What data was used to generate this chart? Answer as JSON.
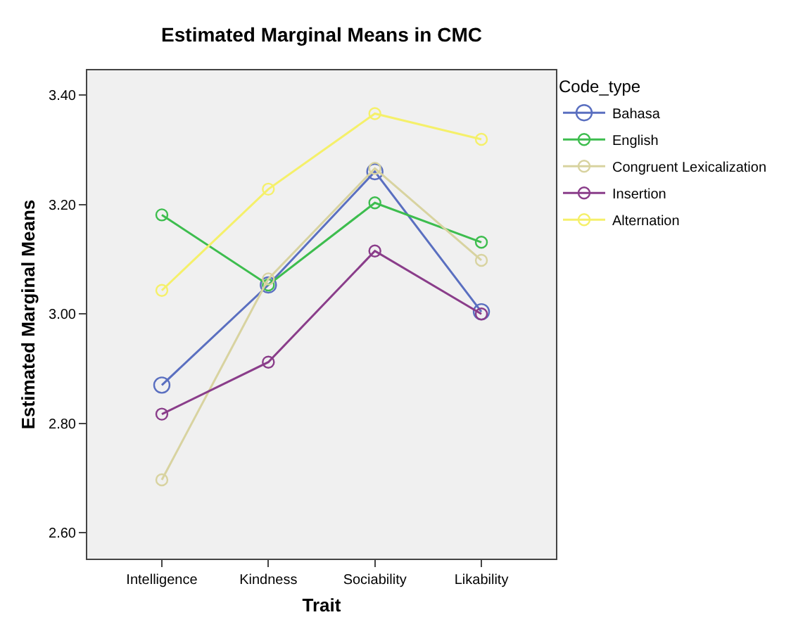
{
  "chart_data": {
    "type": "line",
    "title": "Estimated Marginal Means in CMC",
    "xlabel": "Trait",
    "ylabel": "Estimated Marginal Means",
    "legend_title": "Code_type",
    "categories": [
      "Intelligence",
      "Kindness",
      "Sociability",
      "Likability"
    ],
    "series": [
      {
        "name": "Bahasa",
        "color": "#5a6fc0",
        "values": [
          2.87,
          3.053,
          3.26,
          3.004
        ]
      },
      {
        "name": "English",
        "color": "#3dbd4e",
        "values": [
          3.181,
          3.053,
          3.203,
          3.131
        ]
      },
      {
        "name": "Congruent Lexicalization",
        "color": "#d8d3a0",
        "values": [
          2.697,
          3.064,
          3.266,
          3.098
        ]
      },
      {
        "name": "Insertion",
        "color": "#8a3d8a",
        "values": [
          2.817,
          2.912,
          3.115,
          3.0
        ]
      },
      {
        "name": "Alternation",
        "color": "#f5f06a",
        "values": [
          3.043,
          3.228,
          3.366,
          3.319
        ]
      }
    ],
    "ylim": [
      2.553,
      3.445
    ],
    "yticks": [
      {
        "value": 2.6,
        "label": "2.60"
      },
      {
        "value": 2.8,
        "label": "2.80"
      },
      {
        "value": 3.0,
        "label": "3.00"
      },
      {
        "value": 3.2,
        "label": "3.20"
      },
      {
        "value": 3.4,
        "label": "3.40"
      }
    ],
    "marker": "circle",
    "line_style": "solid",
    "grid": false,
    "legend": "right"
  }
}
